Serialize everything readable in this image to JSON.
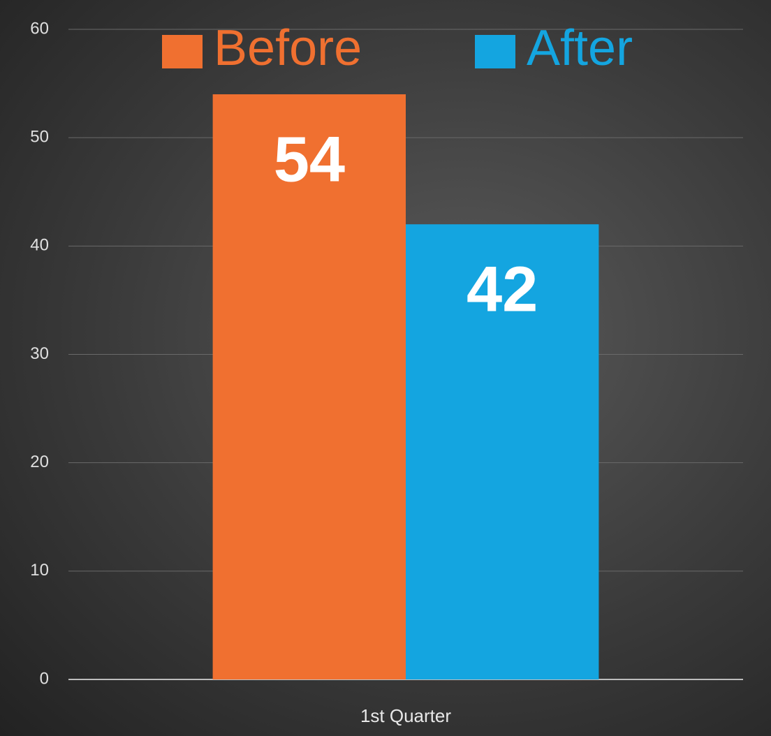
{
  "chart_data": {
    "type": "bar",
    "categories": [
      "1st Quarter"
    ],
    "series": [
      {
        "name": "Before",
        "color": "#f07030",
        "values": [
          54
        ]
      },
      {
        "name": "After",
        "color": "#14a5e0",
        "values": [
          42
        ]
      }
    ],
    "ylim": [
      0,
      60
    ],
    "yticks": [
      0,
      10,
      20,
      30,
      40,
      50,
      60
    ],
    "grid": true,
    "legend": "top"
  }
}
